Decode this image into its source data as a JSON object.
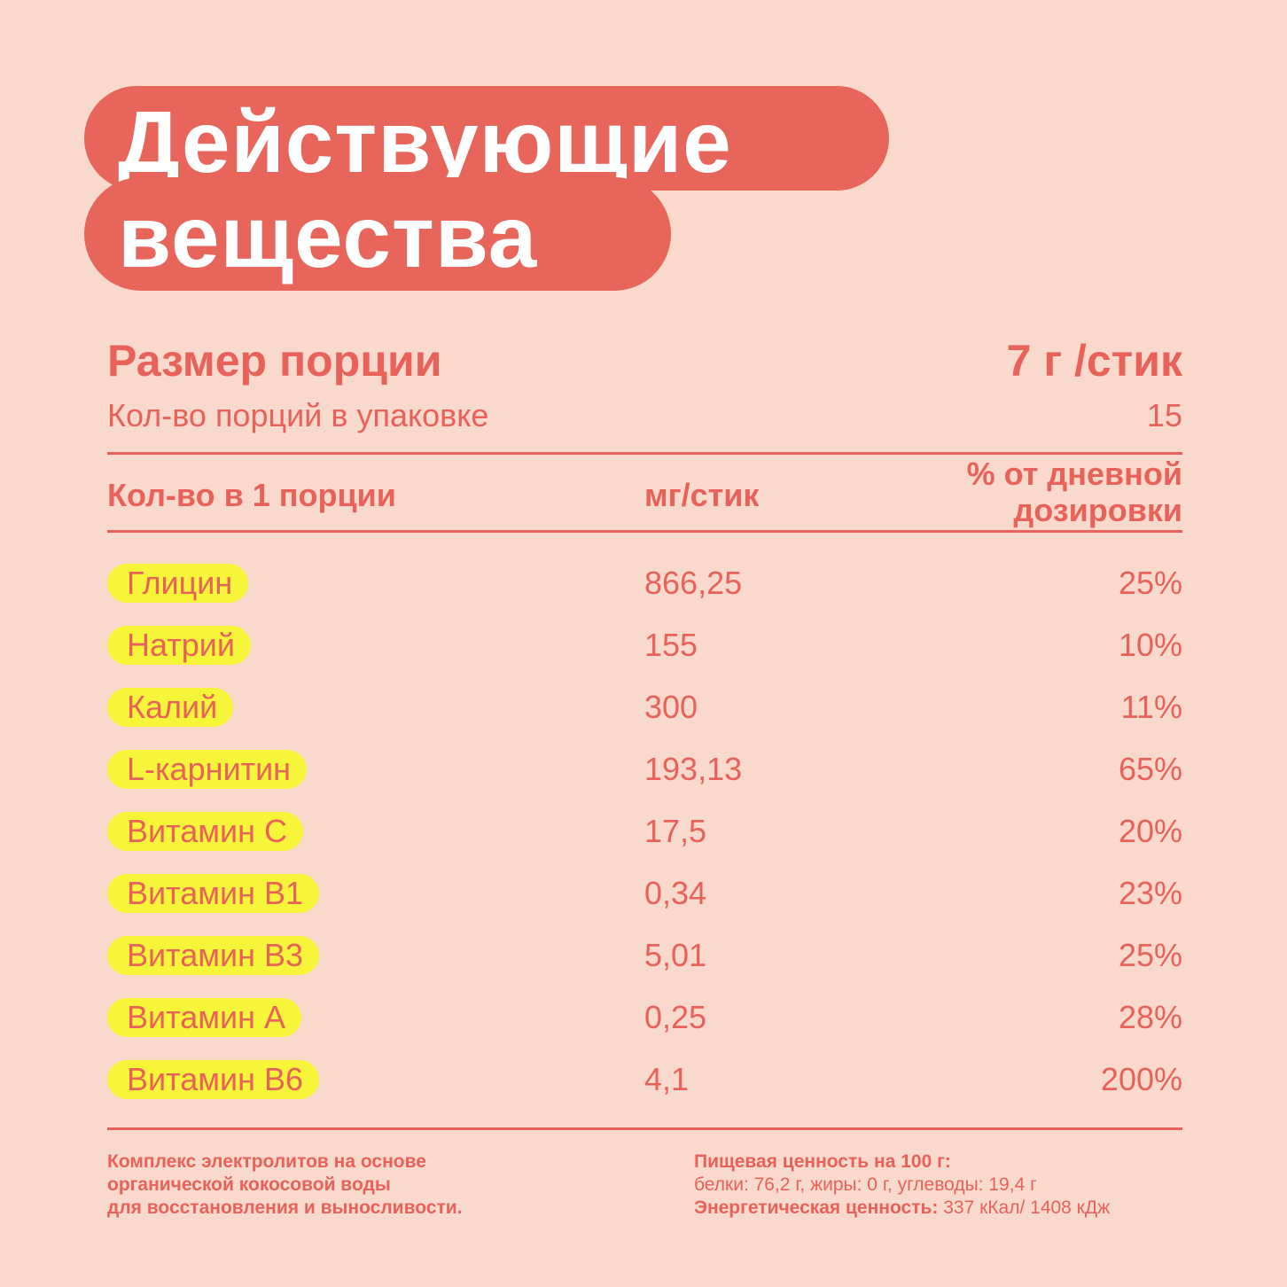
{
  "title": {
    "line1": "Действующие",
    "line2": "вещества"
  },
  "portion": {
    "label": "Размер порции",
    "value": "7 г /стик"
  },
  "count": {
    "label": "Кол-во порций в упаковке",
    "value": "15"
  },
  "table": {
    "headers": {
      "name": "Кол-во в 1 порции",
      "mg": "мг/стик",
      "pct_line1": "% от дневной",
      "pct_line2": "дозировки"
    },
    "rows": [
      {
        "name": "Глицин",
        "mg": "866,25",
        "pct": "25%"
      },
      {
        "name": "Натрий",
        "mg": "155",
        "pct": "10%"
      },
      {
        "name": "Калий",
        "mg": "300",
        "pct": "11%"
      },
      {
        "name": "L-карнитин",
        "mg": "193,13",
        "pct": "65%"
      },
      {
        "name": "Витамин С",
        "mg": "17,5",
        "pct": "20%"
      },
      {
        "name": "Витамин В1",
        "mg": "0,34",
        "pct": "23%"
      },
      {
        "name": "Витамин В3",
        "mg": "5,01",
        "pct": "25%"
      },
      {
        "name": "Витамин А",
        "mg": "0,25",
        "pct": "28%"
      },
      {
        "name": "Витамин В6",
        "mg": "4,1",
        "pct": "200%"
      }
    ]
  },
  "footer": {
    "left": [
      "Комплекс электролитов на основе",
      "органической кокосовой воды",
      "для восстановления и выносливости."
    ],
    "right": {
      "nutrition_title": "Пищевая ценность на 100 г:",
      "nutrition_values": "белки: 76,2 г, жиры: 0 г, углеводы: 19,4 г",
      "energy_label": "Энергетическая ценность:",
      "energy_value": " 337 кКал/ 1408 кДж"
    }
  },
  "colors": {
    "background": "#f8d9cb",
    "accent": "#e8655c",
    "highlight": "#f6f53a",
    "text": "#e8625a"
  }
}
